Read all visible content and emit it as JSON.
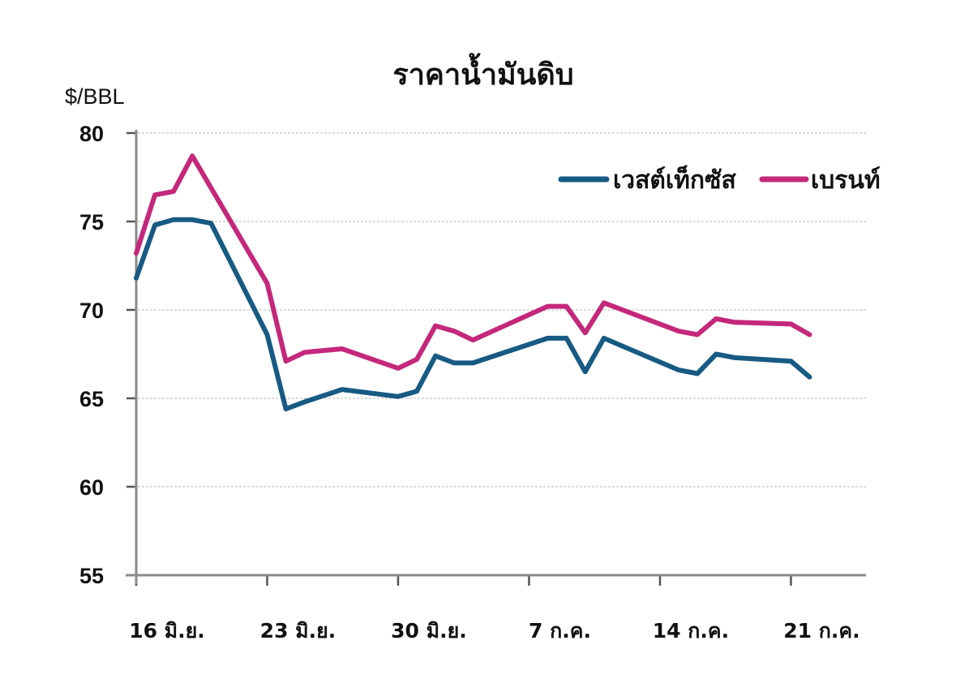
{
  "chart_data": {
    "type": "line",
    "title": "ราคาน้ำมันดิบ",
    "xlabel": "",
    "ylabel": "$/BBL",
    "ylim": [
      55,
      80
    ],
    "yticks": [
      55,
      60,
      65,
      70,
      75,
      80
    ],
    "grid": true,
    "legend_position": "upper right",
    "x_tick_labels": [
      {
        "label": "16 มิ.ย.",
        "day": 0
      },
      {
        "label": "23 มิ.ย.",
        "day": 7
      },
      {
        "label": "30 มิ.ย.",
        "day": 14
      },
      {
        "label": "7 ก.ค.",
        "day": 21
      },
      {
        "label": "14 ก.ค.",
        "day": 28
      },
      {
        "label": "21 ก.ค.",
        "day": 35
      }
    ],
    "x": [
      "16 มิ.ย.",
      "17 มิ.ย.",
      "18 มิ.ย.",
      "19 มิ.ย.",
      "20 มิ.ย.",
      "23 มิ.ย.",
      "24 มิ.ย.",
      "25 มิ.ย.",
      "27 มิ.ย.",
      "30 มิ.ย.",
      "1 ก.ค.",
      "2 ก.ค.",
      "3 ก.ค.",
      "4 ก.ค.",
      "8 ก.ค.",
      "9 ก.ค.",
      "10 ก.ค.",
      "11 ก.ค.",
      "15 ก.ค.",
      "16 ก.ค.",
      "17 ก.ค.",
      "18 ก.ค.",
      "21 ก.ค.",
      "22 ก.ค."
    ],
    "x_days": [
      0,
      1,
      2,
      3,
      4,
      7,
      8,
      9,
      11,
      14,
      15,
      16,
      17,
      18,
      22,
      23,
      24,
      25,
      29,
      30,
      31,
      32,
      35,
      36
    ],
    "series": [
      {
        "name": "เวสต์เท็กซัส",
        "color": "#175a83",
        "values": [
          71.8,
          74.8,
          75.1,
          75.1,
          74.9,
          68.6,
          64.4,
          64.8,
          65.5,
          65.1,
          65.4,
          67.4,
          67.0,
          67.0,
          68.4,
          68.4,
          66.5,
          68.4,
          66.6,
          66.4,
          67.5,
          67.3,
          67.1,
          66.2
        ]
      },
      {
        "name": "เบรนท์",
        "color": "#c4287a",
        "values": [
          73.2,
          76.5,
          76.7,
          78.7,
          76.9,
          71.5,
          67.1,
          67.6,
          67.8,
          66.7,
          67.2,
          69.1,
          68.8,
          68.3,
          70.2,
          70.2,
          68.7,
          70.4,
          68.8,
          68.6,
          69.5,
          69.3,
          69.2,
          68.6
        ]
      }
    ]
  },
  "legend": {
    "items": [
      {
        "label": "เวสต์เท็กซัส",
        "color": "#175a83"
      },
      {
        "label": "เบรนท์",
        "color": "#c4287a"
      }
    ]
  }
}
